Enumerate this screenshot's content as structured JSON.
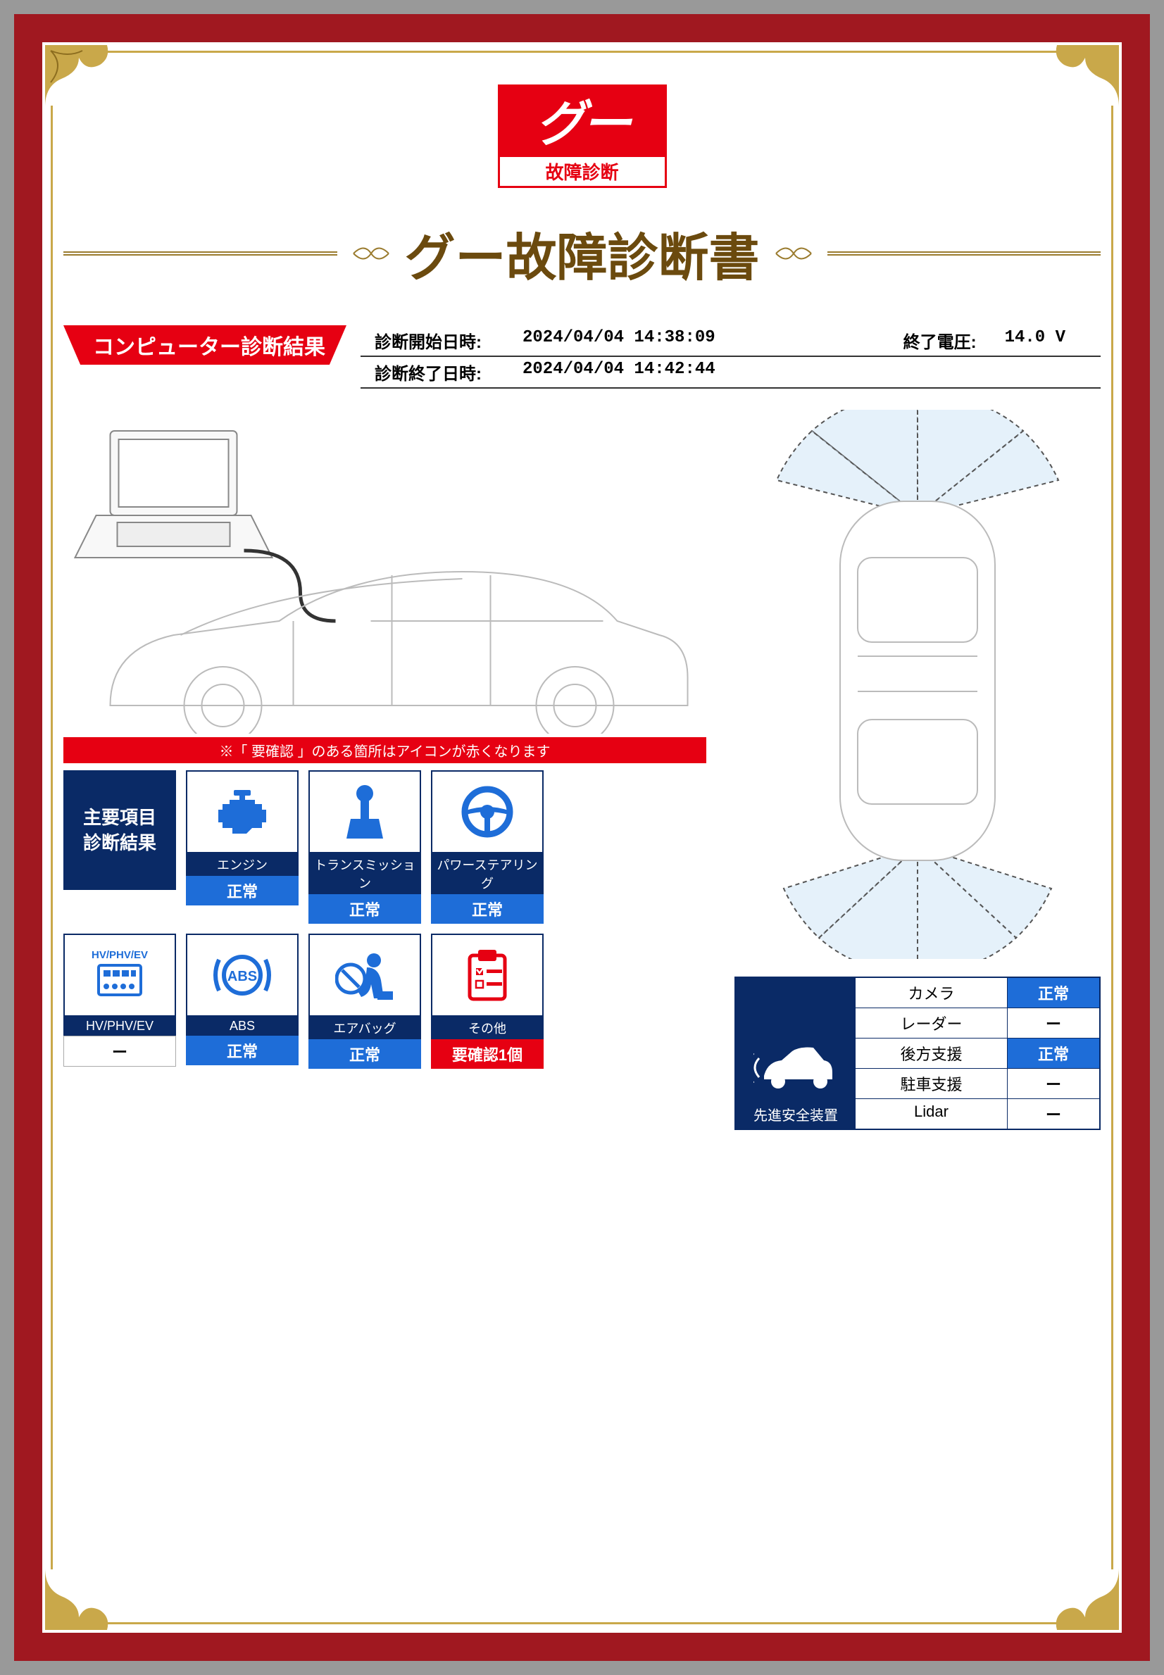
{
  "logo": {
    "brand": "グー",
    "sub": "故障診断"
  },
  "title": "グー故障診断書",
  "section": {
    "badge": "コンピューター診断結果",
    "meta": {
      "start_label": "診断開始日時:",
      "start_value": "2024/04/04 14:38:09",
      "end_label": "診断終了日時:",
      "end_value": "2024/04/04 14:42:44",
      "volt_label": "終了電圧:",
      "volt_value": "14.0 V"
    }
  },
  "notice": "※「 要確認 」のある箇所はアイコンが赤くなります",
  "grid": {
    "header": "主要項目\n診断結果",
    "items": [
      {
        "icon": "engine",
        "label": "エンジン",
        "status": "正常",
        "status_type": "normal"
      },
      {
        "icon": "transmission",
        "label": "トランスミッション",
        "status": "正常",
        "status_type": "normal"
      },
      {
        "icon": "steering",
        "label": "パワーステアリング",
        "status": "正常",
        "status_type": "normal"
      },
      {
        "icon": "hvphvev",
        "label": "HV/PHV/EV",
        "status": "ー",
        "status_type": "dash"
      },
      {
        "icon": "abs",
        "label": "ABS",
        "status": "正常",
        "status_type": "normal"
      },
      {
        "icon": "airbag",
        "label": "エアバッグ",
        "status": "正常",
        "status_type": "normal"
      },
      {
        "icon": "other",
        "label": "その他",
        "status": "要確認1個",
        "status_type": "check"
      }
    ]
  },
  "safety": {
    "heading": "先進安全装置",
    "rows": [
      {
        "name": "カメラ",
        "value": "正常",
        "type": "normal"
      },
      {
        "name": "レーダー",
        "value": "ー",
        "type": "dash"
      },
      {
        "name": "後方支援",
        "value": "正常",
        "type": "normal"
      },
      {
        "name": "駐車支援",
        "value": "ー",
        "type": "dash"
      },
      {
        "name": "Lidar",
        "value": "ー",
        "type": "dash"
      }
    ]
  },
  "colors": {
    "frame": "#a01820",
    "gold": "#c9a84a",
    "primary_red": "#e60012",
    "navy": "#0a2a66",
    "blue": "#1e6dd8",
    "title_brown": "#6b4a0e"
  }
}
